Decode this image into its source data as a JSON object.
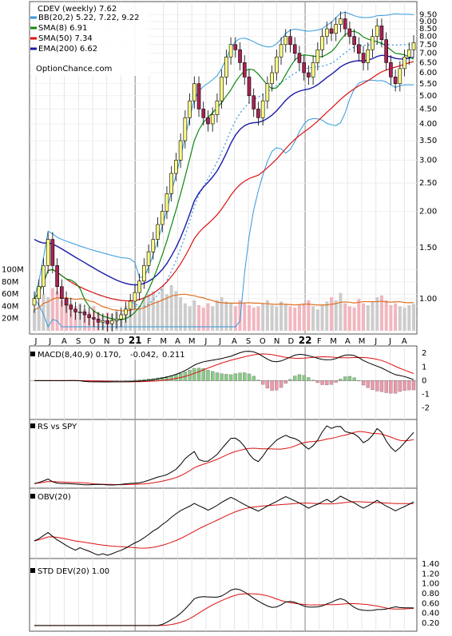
{
  "chart_data": {
    "type": "line",
    "title": "CDEV (weekly) 7.62",
    "watermark": "OptionChance.com",
    "x_months": [
      "J",
      "J",
      "A",
      "S",
      "O",
      "N",
      "D",
      "21",
      "F",
      "M",
      "A",
      "M",
      "J",
      "J",
      "A",
      "S",
      "O",
      "N",
      "D",
      "22",
      "F",
      "M",
      "A",
      "M",
      "J",
      "J",
      "A"
    ],
    "price_panel": {
      "legend": [
        {
          "label": "BB(20,2) 5.22, 7.22, 9.22",
          "color": "#3399dd"
        },
        {
          "label": "SMA(8) 6.91",
          "color": "#118811"
        },
        {
          "label": "SMA(50) 7.34",
          "color": "#dd1111"
        },
        {
          "label": "EMA(200) 6.62",
          "color": "#1a1aaa"
        }
      ],
      "y_ticks": [
        "9.50",
        "9.00",
        "8.50",
        "8.00",
        "7.50",
        "7.00",
        "6.50",
        "6.00",
        "5.50",
        "5.00",
        "4.50",
        "4.00",
        "3.50",
        "3.00",
        "2.50",
        "2.00",
        "1.50",
        "1.00"
      ],
      "y_log": true,
      "close": [
        1.0,
        1.1,
        1.3,
        1.6,
        1.3,
        1.1,
        1.0,
        0.95,
        0.92,
        0.9,
        0.9,
        0.88,
        0.86,
        0.85,
        0.83,
        0.84,
        0.82,
        0.84,
        0.85,
        0.88,
        0.92,
        0.98,
        1.05,
        1.15,
        1.3,
        1.45,
        1.6,
        1.8,
        2.0,
        2.3,
        2.7,
        3.0,
        3.5,
        4.2,
        4.8,
        5.5,
        4.5,
        4.2,
        4.0,
        4.3,
        4.8,
        5.8,
        6.8,
        7.5,
        7.2,
        6.5,
        5.8,
        5.0,
        4.5,
        4.2,
        4.8,
        5.5,
        6.0,
        6.8,
        7.5,
        8.0,
        7.5,
        7.0,
        6.5,
        6.0,
        5.8,
        6.5,
        7.2,
        8.0,
        8.5,
        8.2,
        8.8,
        9.2,
        8.5,
        8.0,
        7.5,
        7.0,
        6.5,
        7.2,
        8.0,
        8.7,
        7.8,
        6.5,
        5.8,
        5.5,
        6.2,
        6.8,
        7.2,
        7.62
      ],
      "sma8_last": 6.91,
      "sma50_last": 7.34,
      "ema200_last": 6.62,
      "bb": {
        "lower": 5.22,
        "mid": 7.22,
        "upper": 9.22
      }
    },
    "volume_panel": {
      "y_ticks": [
        "100M",
        "80M",
        "60M",
        "40M",
        "20M"
      ],
      "values": [
        35,
        40,
        60,
        55,
        70,
        65,
        50,
        55,
        45,
        40,
        45,
        35,
        30,
        40,
        30,
        25,
        30,
        28,
        35,
        30,
        40,
        50,
        45,
        40,
        55,
        60,
        65,
        50,
        70,
        60,
        75,
        65,
        55,
        45,
        40,
        50,
        42,
        38,
        45,
        40,
        50,
        55,
        48,
        45,
        40,
        50,
        45,
        42,
        38,
        40,
        45,
        50,
        42,
        40,
        48,
        44,
        40,
        38,
        42,
        45,
        50,
        40,
        35,
        42,
        48,
        55,
        50,
        62,
        45,
        40,
        38,
        52,
        45,
        42,
        48,
        55,
        58,
        50,
        42,
        45,
        40,
        38,
        42,
        44
      ]
    },
    "macd_panel": {
      "label": "MACD(8,40,9)",
      "v1": "0.170,",
      "v2": "-0.042,",
      "v3": "0.211",
      "y_ticks": [
        "2",
        "1",
        "0",
        "-1",
        "-2"
      ]
    },
    "rs_panel": {
      "label": "RS vs SPY"
    },
    "obv_panel": {
      "label": "OBV(20)"
    },
    "std_panel": {
      "label": "STD DEV(20) 1.00",
      "y_ticks": [
        "1.40",
        "1.20",
        "1.00",
        "0.80",
        "0.60",
        "0.40",
        "0.20"
      ]
    }
  }
}
